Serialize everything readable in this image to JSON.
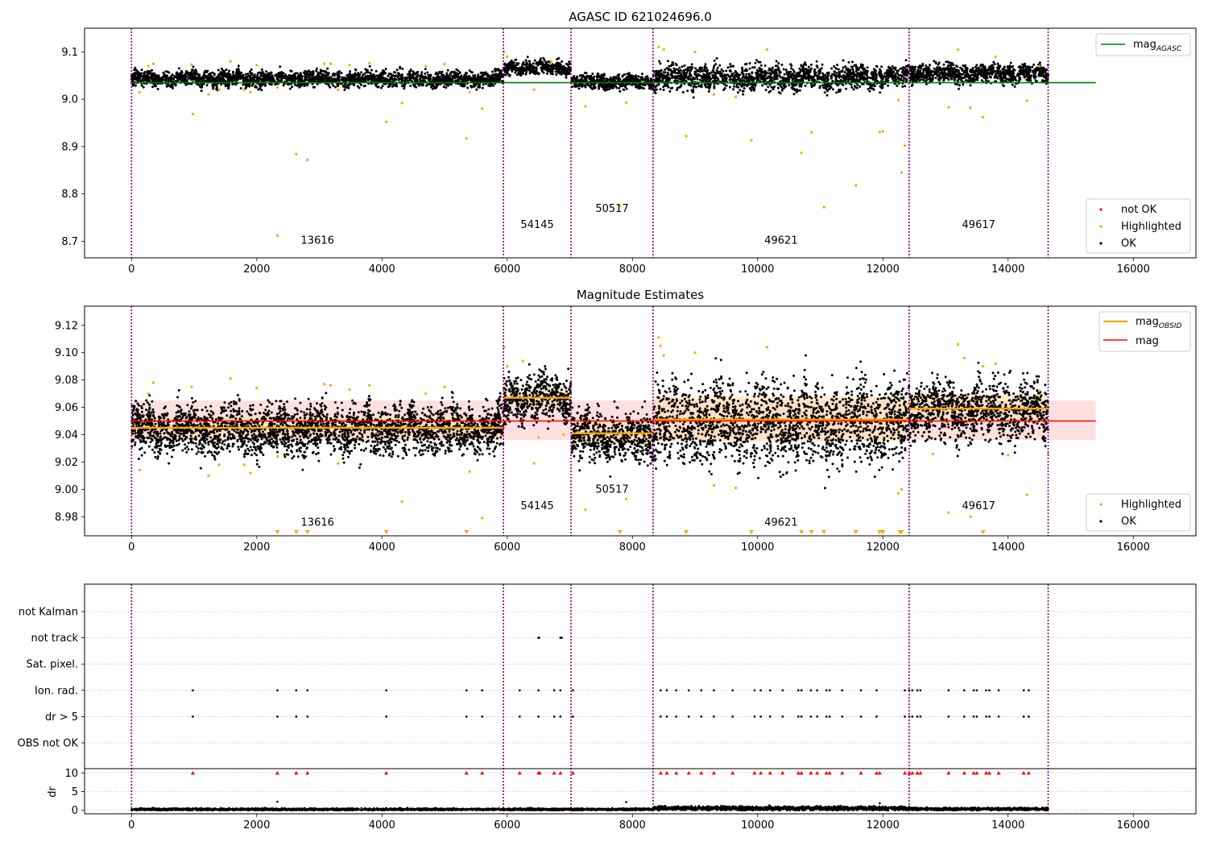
{
  "figure": {
    "panels": [
      "mag-panel",
      "estimates-panel",
      "flags-panel"
    ]
  },
  "colors": {
    "ok": "#000000",
    "highlighted": "#ffa500",
    "not_ok": "#ff0000",
    "agasc_line": "#008000",
    "mean_line": "#ff0000",
    "obsid_line": "#ffa500",
    "band": "#ffcccc",
    "obs_boundary": "#800080",
    "grid": "#b0b0b0"
  },
  "chart_data": [
    {
      "id": "mag-panel",
      "type": "scatter",
      "title": "AGASC ID 621024696.0",
      "xlim": [
        -750,
        17000
      ],
      "ylim": [
        8.665,
        9.15
      ],
      "xticks": [
        0,
        2000,
        4000,
        6000,
        8000,
        10000,
        12000,
        14000,
        16000
      ],
      "yticks": [
        8.7,
        8.8,
        8.9,
        9.0,
        9.1
      ],
      "ytick_labels": [
        "8.7",
        "8.8",
        "8.9",
        "9.0",
        "9.1"
      ],
      "obs_boundaries": [
        0,
        5940,
        7020,
        8330,
        12420,
        14640
      ],
      "agasc_mag": 9.035,
      "agasc_line_x": [
        0,
        15400
      ],
      "obs_segments": [
        {
          "x": [
            0,
            5940
          ],
          "center": 9.043,
          "spread": 0.01
        },
        {
          "x": [
            5940,
            7020
          ],
          "center": 9.066,
          "spread": 0.009
        },
        {
          "x": [
            7020,
            8330
          ],
          "center": 9.037,
          "spread": 0.009
        },
        {
          "x": [
            8330,
            12420
          ],
          "center": 9.046,
          "spread": 0.016
        },
        {
          "x": [
            12420,
            14640
          ],
          "center": 9.055,
          "spread": 0.012
        }
      ],
      "highlighted_points": [
        {
          "x": 130,
          "y": 9.015
        },
        {
          "x": 270,
          "y": 9.07
        },
        {
          "x": 350,
          "y": 9.075
        },
        {
          "x": 960,
          "y": 9.073
        },
        {
          "x": 980,
          "y": 8.969
        },
        {
          "x": 1230,
          "y": 9.01
        },
        {
          "x": 1400,
          "y": 9.02
        },
        {
          "x": 1580,
          "y": 9.08
        },
        {
          "x": 1800,
          "y": 9.02
        },
        {
          "x": 1900,
          "y": 9.015
        },
        {
          "x": 2000,
          "y": 9.072
        },
        {
          "x": 2330,
          "y": 8.712
        },
        {
          "x": 2330,
          "y": 9.025
        },
        {
          "x": 2630,
          "y": 8.884
        },
        {
          "x": 2810,
          "y": 8.872
        },
        {
          "x": 3080,
          "y": 9.075
        },
        {
          "x": 3180,
          "y": 9.075
        },
        {
          "x": 3300,
          "y": 9.02
        },
        {
          "x": 3480,
          "y": 9.072
        },
        {
          "x": 3800,
          "y": 9.076
        },
        {
          "x": 4070,
          "y": 8.952
        },
        {
          "x": 4320,
          "y": 8.992
        },
        {
          "x": 4700,
          "y": 9.07
        },
        {
          "x": 5000,
          "y": 9.074
        },
        {
          "x": 5350,
          "y": 8.917
        },
        {
          "x": 5400,
          "y": 9.015
        },
        {
          "x": 5600,
          "y": 8.98
        },
        {
          "x": 5950,
          "y": 9.1
        },
        {
          "x": 6000,
          "y": 9.09
        },
        {
          "x": 6430,
          "y": 9.02
        },
        {
          "x": 6700,
          "y": 9.08
        },
        {
          "x": 7250,
          "y": 8.985
        },
        {
          "x": 7800,
          "y": 8.775
        },
        {
          "x": 7900,
          "y": 8.993
        },
        {
          "x": 8420,
          "y": 9.11
        },
        {
          "x": 8500,
          "y": 9.105
        },
        {
          "x": 8860,
          "y": 8.922
        },
        {
          "x": 9000,
          "y": 9.1
        },
        {
          "x": 9300,
          "y": 9.01
        },
        {
          "x": 9650,
          "y": 9.005
        },
        {
          "x": 9900,
          "y": 8.913
        },
        {
          "x": 10150,
          "y": 9.105
        },
        {
          "x": 10700,
          "y": 8.887
        },
        {
          "x": 10860,
          "y": 8.93
        },
        {
          "x": 11060,
          "y": 8.772
        },
        {
          "x": 11570,
          "y": 8.818
        },
        {
          "x": 11950,
          "y": 8.931
        },
        {
          "x": 12000,
          "y": 8.932
        },
        {
          "x": 12250,
          "y": 8.998
        },
        {
          "x": 12300,
          "y": 8.845
        },
        {
          "x": 12350,
          "y": 8.902
        },
        {
          "x": 13050,
          "y": 8.983
        },
        {
          "x": 13200,
          "y": 9.105
        },
        {
          "x": 13400,
          "y": 8.982
        },
        {
          "x": 13600,
          "y": 8.962
        },
        {
          "x": 13800,
          "y": 9.09
        },
        {
          "x": 14300,
          "y": 8.997
        },
        {
          "x": 14500,
          "y": 9.07
        }
      ],
      "not_ok_points": [],
      "annotations": [
        {
          "text": "13616",
          "x": 2970,
          "y": 8.695
        },
        {
          "text": "54145",
          "x": 6480,
          "y": 8.728
        },
        {
          "text": "50517",
          "x": 7675,
          "y": 8.762
        },
        {
          "text": "49621",
          "x": 10375,
          "y": 8.695
        },
        {
          "text": "49617",
          "x": 13530,
          "y": 8.728
        }
      ],
      "legend_upper": {
        "placement": "top-right",
        "series": "mag",
        "subscript": "AGASC"
      },
      "legend_lower": {
        "placement": "bottom-right",
        "entries": [
          "not OK",
          "Highlighted",
          "OK"
        ]
      }
    },
    {
      "id": "estimates-panel",
      "type": "scatter",
      "title": "Magnitude Estimates",
      "xlim": [
        -750,
        17000
      ],
      "ylim": [
        8.966,
        9.134
      ],
      "xticks": [
        0,
        2000,
        4000,
        6000,
        8000,
        10000,
        12000,
        14000,
        16000
      ],
      "yticks": [
        8.98,
        9.0,
        9.02,
        9.04,
        9.06,
        9.08,
        9.1,
        9.12
      ],
      "ytick_labels": [
        "8.98",
        "9.00",
        "9.02",
        "9.04",
        "9.06",
        "9.08",
        "9.10",
        "9.12"
      ],
      "obs_boundaries": [
        0,
        5940,
        7020,
        8330,
        12420,
        14640
      ],
      "mag_mean": 9.05,
      "mag_band": [
        9.036,
        9.065
      ],
      "mean_line_x": [
        0,
        15400
      ],
      "obsid_means": [
        {
          "x": [
            0,
            5940
          ],
          "mag": 9.045,
          "band": [
            9.036,
            9.054
          ]
        },
        {
          "x": [
            5940,
            7020
          ],
          "mag": 9.067,
          "band": [
            9.06,
            9.075
          ]
        },
        {
          "x": [
            7020,
            8330
          ],
          "mag": 9.041,
          "band": [
            9.033,
            9.05
          ]
        },
        {
          "x": [
            8330,
            12420
          ],
          "mag": 9.051,
          "band": [
            9.035,
            9.068
          ]
        },
        {
          "x": [
            12420,
            14640
          ],
          "mag": 9.059,
          "band": [
            9.048,
            9.07
          ]
        }
      ],
      "obs_segments": [
        {
          "x": [
            0,
            5940
          ],
          "center": 9.044,
          "spread": 0.011
        },
        {
          "x": [
            5940,
            7020
          ],
          "center": 9.067,
          "spread": 0.01
        },
        {
          "x": [
            7020,
            8330
          ],
          "center": 9.039,
          "spread": 0.011
        },
        {
          "x": [
            8330,
            12420
          ],
          "center": 9.049,
          "spread": 0.018
        },
        {
          "x": [
            12420,
            14640
          ],
          "center": 9.058,
          "spread": 0.013
        }
      ],
      "highlighted_points": [
        {
          "x": 130,
          "y": 9.014
        },
        {
          "x": 270,
          "y": 9.07
        },
        {
          "x": 350,
          "y": 9.078
        },
        {
          "x": 960,
          "y": 9.075
        },
        {
          "x": 1230,
          "y": 9.01
        },
        {
          "x": 1400,
          "y": 9.018
        },
        {
          "x": 1580,
          "y": 9.081
        },
        {
          "x": 1800,
          "y": 9.018
        },
        {
          "x": 1900,
          "y": 9.012
        },
        {
          "x": 2000,
          "y": 9.074
        },
        {
          "x": 2330,
          "y": 9.024
        },
        {
          "x": 3080,
          "y": 9.077
        },
        {
          "x": 3180,
          "y": 9.076
        },
        {
          "x": 3300,
          "y": 9.019
        },
        {
          "x": 3480,
          "y": 9.073
        },
        {
          "x": 3800,
          "y": 9.076
        },
        {
          "x": 4320,
          "y": 8.991
        },
        {
          "x": 4700,
          "y": 9.07
        },
        {
          "x": 5000,
          "y": 9.075
        },
        {
          "x": 5400,
          "y": 9.013
        },
        {
          "x": 5600,
          "y": 8.979
        },
        {
          "x": 5950,
          "y": 9.104
        },
        {
          "x": 6000,
          "y": 9.09
        },
        {
          "x": 6250,
          "y": 9.094
        },
        {
          "x": 6430,
          "y": 9.019
        },
        {
          "x": 6500,
          "y": 9.038
        },
        {
          "x": 6900,
          "y": 9.04
        },
        {
          "x": 7250,
          "y": 8.985
        },
        {
          "x": 7900,
          "y": 8.993
        },
        {
          "x": 8420,
          "y": 9.111
        },
        {
          "x": 8450,
          "y": 9.105
        },
        {
          "x": 8500,
          "y": 9.098
        },
        {
          "x": 9000,
          "y": 9.1
        },
        {
          "x": 9300,
          "y": 9.003
        },
        {
          "x": 9650,
          "y": 9.001
        },
        {
          "x": 10150,
          "y": 9.104
        },
        {
          "x": 12250,
          "y": 8.997
        },
        {
          "x": 12300,
          "y": 9.0
        },
        {
          "x": 12800,
          "y": 9.026
        },
        {
          "x": 13050,
          "y": 8.983
        },
        {
          "x": 13200,
          "y": 9.106
        },
        {
          "x": 13300,
          "y": 9.096
        },
        {
          "x": 13400,
          "y": 8.98
        },
        {
          "x": 13600,
          "y": 9.09
        },
        {
          "x": 13800,
          "y": 9.092
        },
        {
          "x": 14000,
          "y": 9.025
        },
        {
          "x": 14300,
          "y": 8.996
        },
        {
          "x": 14500,
          "y": 9.072
        },
        {
          "x": 14640,
          "y": 9.026
        }
      ],
      "offscale_markers_x": [
        2330,
        2630,
        2810,
        4070,
        5350,
        7800,
        8860,
        9900,
        10700,
        10860,
        11060,
        11570,
        11950,
        12000,
        12270,
        12300,
        13600
      ],
      "annotations": [
        {
          "text": "13616",
          "x": 2970,
          "y": 8.9735
        },
        {
          "text": "54145",
          "x": 6480,
          "y": 8.9855
        },
        {
          "text": "50517",
          "x": 7675,
          "y": 8.9975
        },
        {
          "text": "49621",
          "x": 10375,
          "y": 8.9735
        },
        {
          "text": "49617",
          "x": 13530,
          "y": 8.9855
        }
      ],
      "legend_upper": {
        "placement": "top-right",
        "entries": [
          {
            "series": "mag",
            "subscript": "OBSID"
          },
          {
            "series": "mag",
            "subscript": ""
          }
        ]
      },
      "legend_lower": {
        "placement": "bottom-right",
        "entries": [
          "Highlighted",
          "OK"
        ]
      }
    },
    {
      "id": "flags-panel",
      "type": "scatter",
      "xlim": [
        -750,
        17000
      ],
      "xticks": [
        0,
        2000,
        4000,
        6000,
        8000,
        10000,
        12000,
        14000,
        16000
      ],
      "obs_boundaries": [
        0,
        5940,
        7020,
        8330,
        12420,
        14640
      ],
      "flag_categories": [
        "not Kalman",
        "not track",
        "Sat. pixel.",
        "Ion. rad.",
        "dr > 5",
        "OBS not OK"
      ],
      "flag_points": {
        "not track": [
          6500,
          6510,
          6850,
          6860,
          6870
        ],
        "Ion. rad.": [
          980,
          2330,
          2630,
          2810,
          4070,
          5350,
          5600,
          6200,
          6500,
          6750,
          6850,
          7050,
          8450,
          8550,
          8700,
          8900,
          9100,
          9300,
          9600,
          9950,
          10050,
          10200,
          10400,
          10650,
          10700,
          10850,
          10950,
          11100,
          11150,
          11350,
          11650,
          11900,
          12350,
          12420,
          12470,
          12550,
          12600,
          13050,
          13300,
          13450,
          13500,
          13650,
          13700,
          13850,
          14250,
          14330
        ],
        "dr > 5": [
          980,
          2330,
          2630,
          2810,
          4070,
          5350,
          5600,
          6200,
          6500,
          6750,
          6850,
          7050,
          8450,
          8550,
          8700,
          8900,
          9100,
          9300,
          9600,
          9950,
          10050,
          10200,
          10400,
          10650,
          10700,
          10850,
          10950,
          11100,
          11150,
          11350,
          11650,
          11900,
          12350,
          12420,
          12470,
          12550,
          12600,
          13050,
          13300,
          13450,
          13500,
          13650,
          13700,
          13850,
          14250,
          14330
        ]
      },
      "dr": {
        "ylabel": "dr",
        "ylim": [
          -0.5,
          10.5
        ],
        "yticks": [
          0,
          5,
          10
        ],
        "ytick_labels": [
          "0",
          "5",
          "10"
        ],
        "ok_segments": [
          {
            "x": [
              0,
              5940
            ],
            "center": 0.25,
            "spread": 0.2
          },
          {
            "x": [
              5940,
              7020
            ],
            "center": 0.25,
            "spread": 0.2
          },
          {
            "x": [
              7020,
              8330
            ],
            "center": 0.25,
            "spread": 0.2
          },
          {
            "x": [
              8330,
              12420
            ],
            "center": 0.55,
            "spread": 0.4
          },
          {
            "x": [
              12420,
              14640
            ],
            "center": 0.35,
            "spread": 0.25
          }
        ],
        "outliers": [
          {
            "x": 2330,
            "y": 2.3
          },
          {
            "x": 7900,
            "y": 2.2
          },
          {
            "x": 11950,
            "y": 1.9
          }
        ],
        "clipped_at_10_x": [
          980,
          2330,
          2630,
          2810,
          4070,
          5350,
          5600,
          6200,
          6500,
          6520,
          6750,
          6850,
          7050,
          8450,
          8550,
          8700,
          8900,
          9100,
          9300,
          9600,
          9950,
          10050,
          10200,
          10400,
          10650,
          10700,
          10850,
          10950,
          11100,
          11150,
          11350,
          11650,
          11900,
          11950,
          12350,
          12420,
          12470,
          12550,
          12600,
          13050,
          13300,
          13450,
          13500,
          13650,
          13700,
          13850,
          14250,
          14330
        ]
      }
    }
  ]
}
